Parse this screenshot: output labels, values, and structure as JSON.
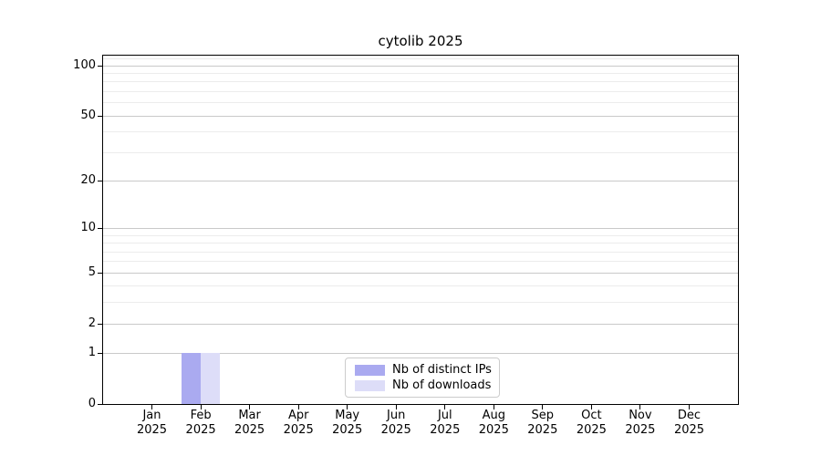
{
  "chart_data": {
    "type": "bar",
    "title": "cytolib 2025",
    "categories": [
      "Jan",
      "Feb",
      "Mar",
      "Apr",
      "May",
      "Jun",
      "Jul",
      "Aug",
      "Sep",
      "Oct",
      "Nov",
      "Dec"
    ],
    "year_label": "2025",
    "series": [
      {
        "name": "Nb of distinct IPs",
        "color": "#aaaaf0",
        "values": [
          0,
          1,
          0,
          0,
          0,
          0,
          0,
          0,
          0,
          0,
          0,
          0
        ]
      },
      {
        "name": "Nb of downloads",
        "color": "#ddddf8",
        "values": [
          0,
          1,
          0,
          0,
          0,
          0,
          0,
          0,
          0,
          0,
          0,
          0
        ]
      }
    ],
    "yscale": "log1p",
    "ylim": [
      0,
      114
    ],
    "y_major_ticks": [
      0,
      1,
      2,
      5,
      10,
      20,
      50,
      100
    ],
    "y_minor_gridlines": [
      3,
      4,
      6,
      7,
      8,
      9,
      30,
      40,
      60,
      70,
      80,
      90,
      110
    ],
    "xlabel": "",
    "ylabel": "",
    "grid": "horizontal",
    "legend_position": "lower center",
    "colors": {
      "axis": "#000000",
      "grid_major": "#c9c9c9",
      "grid_minor": "#ececec",
      "background": "#ffffff",
      "legend_border": "#cccccc"
    }
  }
}
